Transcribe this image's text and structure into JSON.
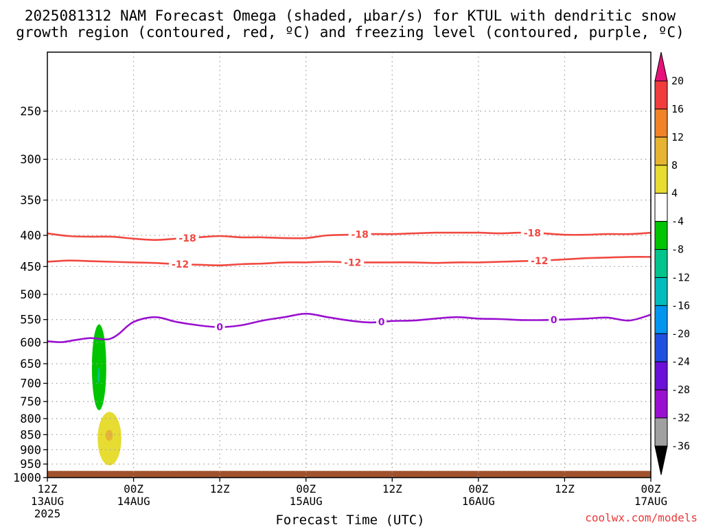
{
  "title_line1": "2025081312 NAM Forecast Omega (shaded, μbar/s) for KTUL with dendritic snow",
  "title_line2": "growth region (contoured, red, ºC) and freezing level (contoured, purple, ºC)",
  "credit": "coolwx.com/models",
  "colors": {
    "dgz_contour": "#f04840",
    "freezing_contour": "#9a10d0",
    "ground": "#a0522d",
    "grid": "#a0a0a0",
    "text": "#000000",
    "credit": "#e83838"
  },
  "chart_data": {
    "type": "contour",
    "xlabel": "Forecast Time (UTC)",
    "ylabel": "",
    "xlim": [
      "2025-08-13 12Z",
      "2025-08-17 00Z"
    ],
    "ylim": [
      1000,
      200
    ],
    "y_scale": "log-pressure",
    "grid": true,
    "x_ticks": [
      {
        "hour": "12Z",
        "date": "13AUG",
        "year": "2025"
      },
      {
        "hour": "00Z",
        "date": "14AUG",
        "year": ""
      },
      {
        "hour": "12Z",
        "date": "",
        "year": ""
      },
      {
        "hour": "00Z",
        "date": "15AUG",
        "year": ""
      },
      {
        "hour": "12Z",
        "date": "",
        "year": ""
      },
      {
        "hour": "00Z",
        "date": "16AUG",
        "year": ""
      },
      {
        "hour": "12Z",
        "date": "",
        "year": ""
      },
      {
        "hour": "00Z",
        "date": "17AUG",
        "year": ""
      }
    ],
    "y_ticks": [
      "250",
      "300",
      "350",
      "400",
      "450",
      "500",
      "550",
      "600",
      "650",
      "700",
      "750",
      "800",
      "850",
      "900",
      "950",
      "1000"
    ],
    "contours": [
      {
        "name": "-18",
        "color": "#f04840",
        "hours": [
          0,
          3,
          6,
          9,
          12,
          15,
          18,
          21,
          24,
          27,
          30,
          33,
          36,
          39,
          42,
          45,
          48,
          51,
          54,
          57,
          60,
          63,
          66,
          69,
          72,
          75,
          78,
          81,
          84
        ],
        "pressure": [
          397,
          401,
          402,
          402,
          405,
          407,
          405,
          403,
          401,
          403,
          403,
          404,
          404,
          400,
          399,
          398,
          398,
          397,
          396,
          396,
          396,
          397,
          396,
          397,
          399,
          399,
          398,
          398,
          396
        ],
        "label_hours": [
          19.5,
          43.5,
          67.5
        ]
      },
      {
        "name": "-12",
        "color": "#f04840",
        "hours": [
          0,
          3,
          6,
          9,
          12,
          15,
          18,
          21,
          24,
          27,
          30,
          33,
          36,
          39,
          42,
          45,
          48,
          51,
          54,
          57,
          60,
          63,
          66,
          69,
          72,
          75,
          78,
          81,
          84
        ],
        "pressure": [
          442,
          440,
          441,
          442,
          443,
          444,
          446,
          447,
          448,
          446,
          445,
          443,
          443,
          442,
          443,
          443,
          443,
          443,
          444,
          443,
          443,
          442,
          441,
          440,
          438,
          436,
          435,
          434,
          434
        ],
        "label_hours": [
          18.5,
          42.5,
          68.5
        ]
      },
      {
        "name": "0",
        "color": "#9a10d0",
        "hours": [
          0,
          2,
          4,
          6,
          8,
          9,
          10,
          12,
          15,
          18,
          21,
          24,
          27,
          30,
          33,
          36,
          39,
          42,
          45,
          48,
          51,
          54,
          57,
          60,
          63,
          66,
          69,
          72,
          75,
          78,
          81,
          84
        ],
        "pressure": [
          597,
          599,
          594,
          590,
          593,
          590,
          580,
          555,
          545,
          555,
          562,
          566,
          562,
          552,
          545,
          538,
          545,
          552,
          556,
          553,
          552,
          548,
          545,
          548,
          549,
          551,
          551,
          550,
          548,
          546,
          552,
          540
        ],
        "label_hours": [
          24,
          46.5,
          70.5
        ]
      }
    ],
    "shaded_regions": [
      {
        "value_range": [
          -8,
          -4
        ],
        "hours_range": [
          6.2,
          8.2
        ],
        "pressure_range": [
          560,
          775
        ],
        "color": "#00c400"
      },
      {
        "value_range": [
          -12,
          -8
        ],
        "hours_range": [
          7.0,
          7.3
        ],
        "pressure_range": [
          660,
          700
        ],
        "color": "#00c48c"
      },
      {
        "value_range": [
          4,
          8
        ],
        "hours_range": [
          7.0,
          10.3
        ],
        "pressure_range": [
          780,
          955
        ],
        "color": "#e6dc32"
      },
      {
        "value_range": [
          8,
          12
        ],
        "hours_range": [
          8.1,
          9.1
        ],
        "pressure_range": [
          835,
          870
        ],
        "color": "#e6b432"
      }
    ],
    "colorbar": {
      "ticks": [
        "20",
        "16",
        "12",
        "8",
        "4",
        "-4",
        "-8",
        "-12",
        "-16",
        "-20",
        "-24",
        "-28",
        "-32",
        "-36"
      ],
      "colors": [
        "#f03c3c",
        "#f08228",
        "#e6b432",
        "#e6dc32",
        "#ffffff",
        "#00c400",
        "#00c48c",
        "#00bcbc",
        "#0096f0",
        "#2050e0",
        "#6a10d8",
        "#9a10d0",
        "#a0a0a0"
      ],
      "top_arrow_color": "#e8127a",
      "bottom_arrow_color": "#000000"
    }
  }
}
